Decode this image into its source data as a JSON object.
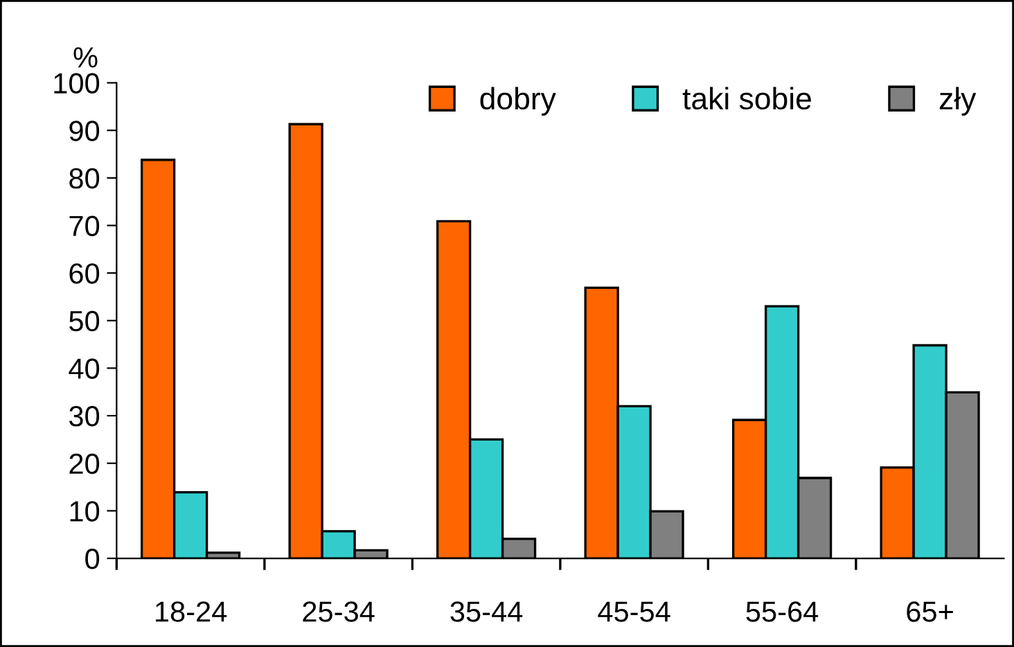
{
  "chart_data": {
    "type": "bar",
    "ylabel": "%",
    "categories": [
      "18-24",
      "25-34",
      "35-44",
      "45-54",
      "55-64",
      "65+"
    ],
    "series": [
      {
        "name": "dobry",
        "color": "#ff6600",
        "values": [
          83.8,
          91.3,
          70.9,
          56.9,
          29.1,
          19.1
        ]
      },
      {
        "name": "taki sobie",
        "color": "#33cccc",
        "values": [
          13.9,
          5.7,
          25.0,
          32.0,
          53.0,
          44.8
        ]
      },
      {
        "name": "zły",
        "color": "#808080",
        "values": [
          1.2,
          1.7,
          4.1,
          9.9,
          16.9,
          34.9
        ]
      }
    ],
    "ylim": [
      0,
      100
    ],
    "yticks": [
      0,
      10,
      20,
      30,
      40,
      50,
      60,
      70,
      80,
      90,
      100
    ],
    "grid": false,
    "legend": "top right"
  }
}
